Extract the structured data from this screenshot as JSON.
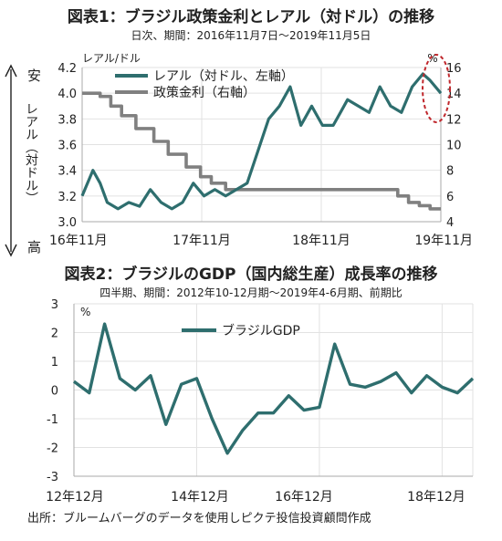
{
  "figure1": {
    "title": "図表1：ブラジル政策金利とレアル（対ドル）の推移",
    "subtitle": "日次、期間：2016年11月7日～2019年11月5日",
    "left_axis_unit": "レアル/ドル",
    "right_axis_unit": "%",
    "left_axis_label": "レアル（対ドル）",
    "direction_top": "安",
    "direction_bottom": "高"
  },
  "figure2": {
    "title": "図表2：ブラジルのGDP（国内総生産）成長率の推移",
    "subtitle": "四半期、期間：2012年10-12月期～2019年4-6月期、前期比",
    "y_unit": "%"
  },
  "source": "出所：ブルームバーグのデータを使用しピクテ投信投資顧問作成",
  "chart_data": [
    {
      "type": "line",
      "xlabels": [
        "16年11月",
        "17年11月",
        "18年11月",
        "19年11月"
      ],
      "ylim": [
        3.0,
        4.2
      ],
      "yticks": [
        "3.0",
        "3.2",
        "3.4",
        "3.6",
        "3.8",
        "4.0",
        "4.2"
      ],
      "ylim_right": [
        4,
        16
      ],
      "yticks_right": [
        "4",
        "6",
        "8",
        "10",
        "12",
        "14",
        "16"
      ],
      "legend": "top-left",
      "grid": true,
      "series": [
        {
          "name": "レアル（対ドル、左軸）",
          "axis": "left",
          "color": "#2e6e6e",
          "x": [
            0,
            0.03,
            0.05,
            0.07,
            0.1,
            0.13,
            0.16,
            0.19,
            0.22,
            0.25,
            0.28,
            0.31,
            0.34,
            0.37,
            0.4,
            0.43,
            0.46,
            0.49,
            0.52,
            0.55,
            0.58,
            0.61,
            0.64,
            0.67,
            0.7,
            0.72,
            0.74,
            0.77,
            0.8,
            0.83,
            0.86,
            0.89,
            0.92,
            0.95,
            0.97,
            1.0
          ],
          "values": [
            3.2,
            3.4,
            3.3,
            3.15,
            3.1,
            3.15,
            3.12,
            3.25,
            3.15,
            3.1,
            3.15,
            3.3,
            3.2,
            3.25,
            3.2,
            3.25,
            3.3,
            3.55,
            3.8,
            3.9,
            4.05,
            3.75,
            3.9,
            3.75,
            3.75,
            3.85,
            3.95,
            3.9,
            3.85,
            4.05,
            3.9,
            3.85,
            4.05,
            4.15,
            4.1,
            4.0
          ]
        },
        {
          "name": "政策金利（右軸）",
          "axis": "right",
          "color": "#808080",
          "x": [
            0,
            0.05,
            0.05,
            0.08,
            0.08,
            0.11,
            0.11,
            0.15,
            0.15,
            0.2,
            0.2,
            0.24,
            0.24,
            0.29,
            0.29,
            0.33,
            0.33,
            0.36,
            0.36,
            0.4,
            0.4,
            0.88,
            0.88,
            0.91,
            0.91,
            0.94,
            0.94,
            0.97,
            0.97,
            1.0
          ],
          "values": [
            14.0,
            14.0,
            13.75,
            13.75,
            13.0,
            13.0,
            12.25,
            12.25,
            11.25,
            11.25,
            10.25,
            10.25,
            9.25,
            9.25,
            8.25,
            8.25,
            7.5,
            7.5,
            7.0,
            7.0,
            6.5,
            6.5,
            6.0,
            6.0,
            5.5,
            5.5,
            5.25,
            5.25,
            5.0,
            5.0
          ]
        }
      ]
    },
    {
      "type": "line",
      "xlabels": [
        "12年12月",
        "14年12月",
        "16年12月",
        "18年12月"
      ],
      "ylim": [
        -3,
        3
      ],
      "yticks": [
        "3",
        "2",
        "1",
        "0",
        "-1",
        "-2",
        "-3"
      ],
      "legend": "top-center",
      "grid": true,
      "series": [
        {
          "name": "ブラジルGDP",
          "color": "#2e6e6e",
          "values": [
            0.3,
            -0.1,
            2.3,
            0.4,
            0.0,
            0.5,
            -1.2,
            0.2,
            0.4,
            -1.0,
            -2.2,
            -1.4,
            -0.8,
            -0.8,
            -0.2,
            -0.7,
            -0.6,
            1.6,
            0.2,
            0.1,
            0.3,
            0.6,
            -0.1,
            0.5,
            0.1,
            -0.1,
            0.4
          ]
        }
      ]
    }
  ]
}
